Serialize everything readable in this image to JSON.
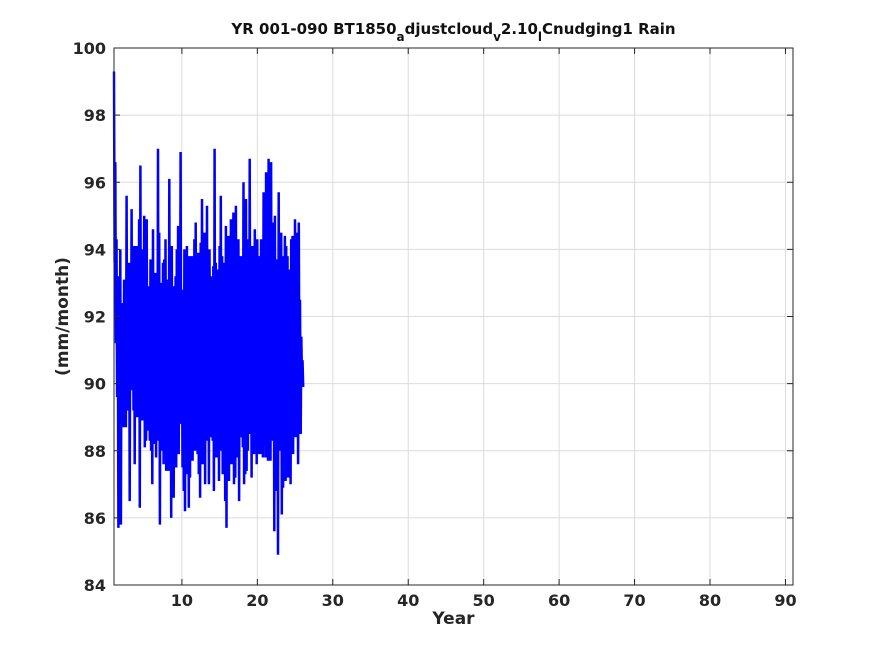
{
  "chart_data": {
    "type": "line",
    "title": {
      "parts": [
        {
          "text": "YR 001-090 BT1850",
          "sub": false
        },
        {
          "text": "a",
          "sub": true
        },
        {
          "text": "djustcloud",
          "sub": false
        },
        {
          "text": "v",
          "sub": true
        },
        {
          "text": "2.10",
          "sub": false
        },
        {
          "text": "l",
          "sub": true
        },
        {
          "text": "Cnudging1 Rain",
          "sub": false
        }
      ]
    },
    "xlabel": "Year",
    "ylabel": "(mm/month)",
    "xlim": [
      1,
      91
    ],
    "ylim": [
      84,
      100
    ],
    "xticks": [
      10,
      20,
      30,
      40,
      50,
      60,
      70,
      80,
      90
    ],
    "yticks": [
      84,
      86,
      88,
      90,
      92,
      94,
      96,
      98,
      100
    ],
    "grid": true,
    "series": [
      {
        "color": "#0000ff",
        "x_start": 1.0,
        "x_step": 0.0833,
        "values": [
          99.3,
          93.6,
          96.6,
          91.2,
          94.3,
          89.6,
          92.5,
          85.7,
          93.2,
          88.1,
          94.0,
          85.8,
          92.4,
          89.4,
          91.8,
          88.7,
          93.1,
          90.2,
          92.0,
          88.7,
          95.6,
          89.2,
          91.8,
          89.9,
          93.6,
          86.5,
          93.2,
          89.8,
          95.2,
          90.4,
          92.7,
          89.2,
          94.1,
          87.6,
          93.9,
          89.0,
          94.1,
          89.7,
          91.8,
          89.0,
          94.9,
          86.3,
          96.5,
          89.1,
          93.4,
          88.9,
          94.0,
          89.5,
          95.0,
          88.1,
          92.7,
          88.3,
          94.9,
          88.6,
          92.9,
          89.7,
          91.6,
          88.3,
          93.7,
          88.0,
          92.1,
          87.0,
          94.6,
          88.2,
          91.2,
          89.7,
          93.3,
          87.8,
          92.8,
          88.6,
          97.0,
          88.3,
          94.5,
          85.8,
          93.0,
          88.0,
          92.9,
          89.4,
          93.6,
          87.6,
          93.7,
          88.6,
          94.3,
          87.4,
          92.8,
          88.3,
          93.1,
          87.4,
          96.1,
          87.6,
          93.0,
          86.0,
          94.1,
          88.0,
          92.9,
          86.6,
          92.6,
          88.8,
          93.2,
          87.5,
          94.0,
          88.4,
          94.7,
          87.9,
          93.1,
          90.0,
          96.9,
          88.8,
          91.7,
          87.5,
          92.8,
          86.8,
          94.0,
          86.2,
          93.7,
          88.0,
          94.1,
          87.3,
          92.4,
          86.3,
          93.8,
          87.2,
          92.7,
          88.9,
          93.8,
          87.7,
          92.5,
          88.6,
          94.3,
          88.0,
          94.8,
          88.8,
          92.0,
          87.9,
          93.9,
          87.3,
          92.4,
          86.6,
          94.2,
          88.1,
          95.5,
          87.6,
          93.4,
          88.2,
          94.5,
          87.0,
          93.6,
          88.4,
          95.3,
          88.3,
          93.3,
          87.0,
          94.0,
          89.0,
          93.2,
          88.4,
          92.8,
          88.3,
          93.5,
          86.8,
          97.0,
          88.1,
          93.6,
          87.8,
          92.0,
          88.4,
          93.4,
          87.1,
          94.1,
          88.0,
          95.6,
          88.0,
          93.8,
          87.3,
          92.8,
          88.1,
          93.6,
          86.5,
          94.7,
          85.7,
          93.9,
          87.9,
          94.4,
          87.1,
          92.7,
          88.3,
          94.9,
          87.6,
          93.9,
          87.7,
          95.1,
          87.0,
          94.1,
          87.2,
          95.3,
          87.8,
          93.2,
          88.4,
          94.3,
          86.5,
          92.4,
          88.9,
          93.8,
          88.4,
          93.0,
          88.1,
          96.0,
          87.0,
          94.4,
          87.3,
          95.5,
          87.4,
          94.0,
          88.0,
          94.3,
          88.5,
          96.7,
          88.6,
          93.4,
          87.2,
          94.1,
          88.3,
          93.5,
          87.9,
          94.6,
          88.8,
          93.3,
          87.6,
          94.3,
          87.9,
          93.1,
          88.2,
          93.8,
          87.9,
          94.3,
          88.9,
          93.0,
          87.8,
          95.7,
          89.4,
          93.5,
          87.8,
          96.3,
          88.5,
          94.6,
          87.7,
          96.7,
          88.1,
          93.7,
          87.7,
          96.6,
          88.3,
          94.8,
          88.9,
          93.2,
          85.6,
          95.0,
          87.2,
          93.7,
          86.8,
          91.6,
          84.9,
          95.7,
          88.0,
          93.3,
          88.9,
          94.5,
          86.1,
          92.7,
          86.9,
          93.8,
          88.2,
          94.4,
          87.1,
          94.1,
          88.9,
          93.8,
          87.2,
          93.4,
          87.3,
          93.2,
          87.0,
          94.3,
          88.1,
          94.4,
          87.9,
          93.6,
          89.0,
          94.9,
          88.4,
          94.5,
          88.7,
          93.0,
          87.6,
          94.8,
          89.8,
          92.5,
          88.5,
          91.4,
          90.3,
          90.7,
          89.9
        ]
      }
    ]
  }
}
